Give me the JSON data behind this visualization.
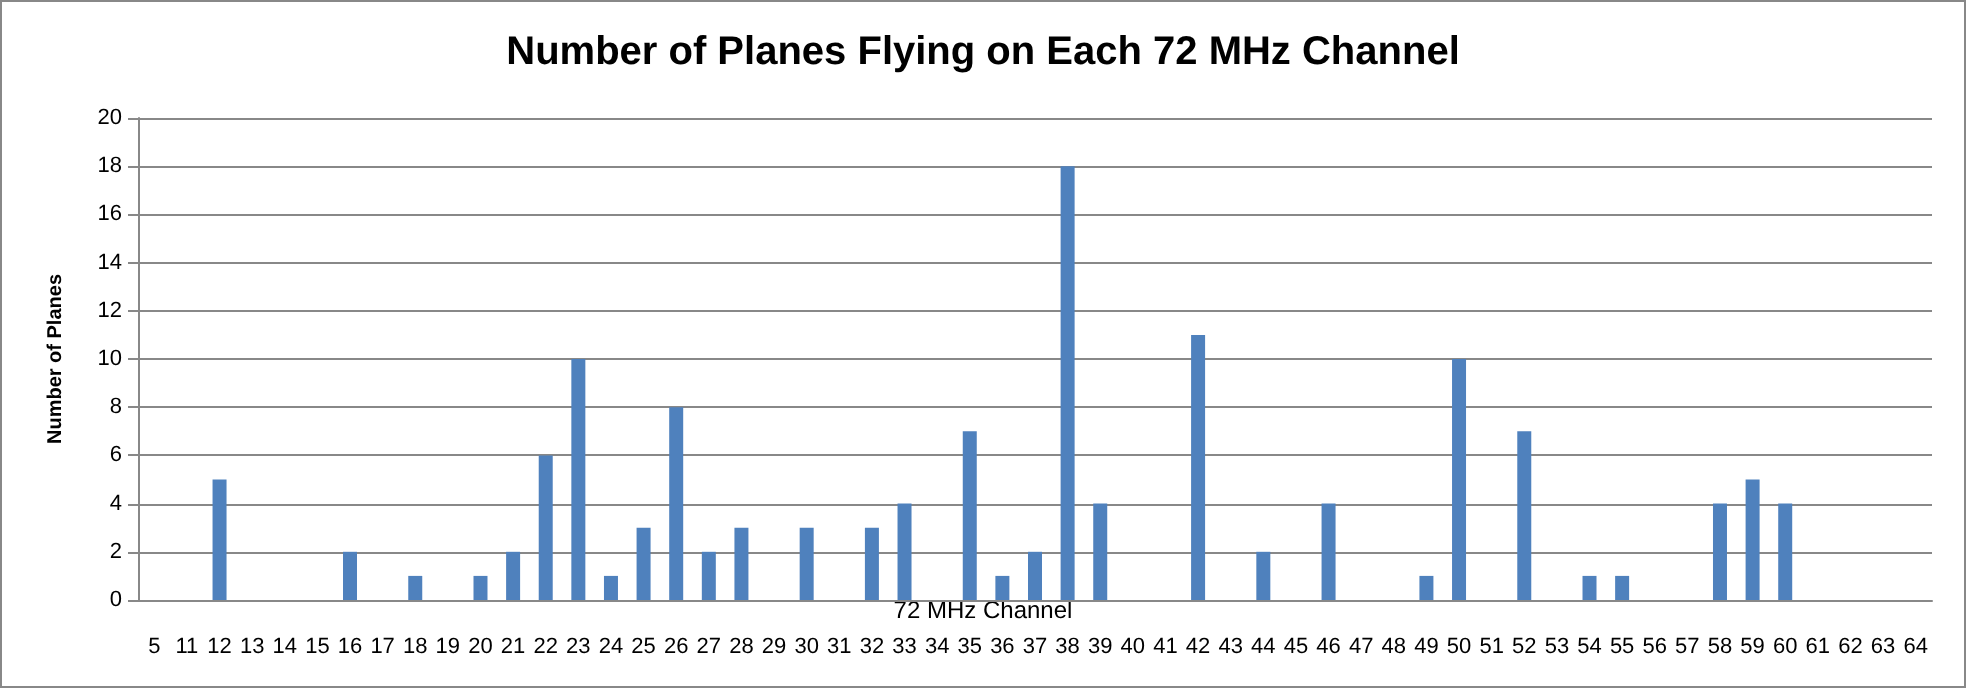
{
  "chart_data": {
    "type": "bar",
    "title": "Number of Planes Flying on Each 72 MHz Channel",
    "xlabel": "72 MHz Channel",
    "ylabel": "Number of Planes",
    "categories": [
      "5",
      "11",
      "12",
      "13",
      "14",
      "15",
      "16",
      "17",
      "18",
      "19",
      "20",
      "21",
      "22",
      "23",
      "24",
      "25",
      "26",
      "27",
      "28",
      "29",
      "30",
      "31",
      "32",
      "33",
      "34",
      "35",
      "36",
      "37",
      "38",
      "39",
      "40",
      "41",
      "42",
      "43",
      "44",
      "45",
      "46",
      "47",
      "48",
      "49",
      "50",
      "51",
      "52",
      "53",
      "54",
      "55",
      "56",
      "57",
      "58",
      "59",
      "60",
      "61",
      "62",
      "63",
      "64"
    ],
    "values": [
      0,
      0,
      5,
      0,
      0,
      0,
      2,
      0,
      1,
      0,
      1,
      2,
      6,
      10,
      1,
      3,
      8,
      2,
      3,
      0,
      3,
      0,
      3,
      4,
      0,
      7,
      1,
      2,
      18,
      4,
      0,
      0,
      11,
      0,
      2,
      0,
      4,
      0,
      0,
      1,
      10,
      0,
      7,
      0,
      1,
      1,
      0,
      0,
      4,
      5,
      4,
      0,
      0,
      0,
      0
    ],
    "color": "#4f81bd",
    "ylim": [
      0,
      20
    ],
    "yticks": [
      0,
      2,
      4,
      6,
      8,
      10,
      12,
      14,
      16,
      18,
      20
    ],
    "grid": "y"
  }
}
